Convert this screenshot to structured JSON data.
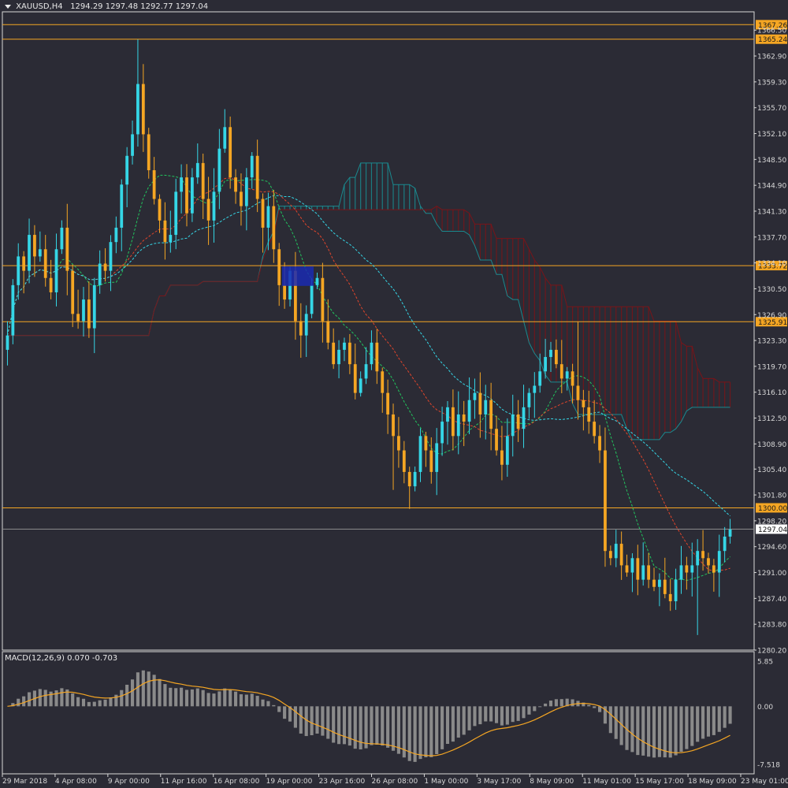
{
  "window": {
    "symbol": "XAUUSD,H4",
    "ohlc": "1294.29 1297.48 1292.77 1297.04"
  },
  "colors": {
    "background": "#2b2b35",
    "grid_frame": "#d8d8d8",
    "bull_candle": "#35d6e6",
    "bear_candle": "#f5a623",
    "level_line": "#f5a623",
    "current_price_line": "#8a8a8a",
    "kumo_bear": "#7a1418",
    "kumo_bull": "#1a8a8f",
    "ma_fast": "#22c55e",
    "ma_mid": "#e0452b",
    "ma_slow": "#35d6e6",
    "macd_hist": "#8a8a8a",
    "macd_signal": "#f5a623",
    "highlight_box": "#1a2ab0"
  },
  "macd": {
    "label": "MACD(12,26,9) 0.070 -0.703",
    "ticks": [
      "5.85",
      "0.00",
      "-7.518"
    ]
  },
  "chart_data": {
    "type": "candlestick",
    "timeframe": "H4",
    "ylim": [
      1280.2,
      1368.5
    ],
    "y_ticks": [
      "1366.50",
      "1362.90",
      "1359.30",
      "1355.70",
      "1352.10",
      "1348.50",
      "1344.90",
      "1341.30",
      "1337.70",
      "1334.10",
      "1330.50",
      "1326.90",
      "1323.30",
      "1319.70",
      "1316.10",
      "1312.50",
      "1308.90",
      "1305.40",
      "1301.80",
      "1298.20",
      "1294.60",
      "1291.00",
      "1287.40",
      "1283.80",
      "1280.20"
    ],
    "x_ticks": [
      "29 Mar 2018",
      "4 Apr 08:00",
      "9 Apr 00:00",
      "11 Apr 16:00",
      "16 Apr 08:00",
      "19 Apr 00:00",
      "23 Apr 16:00",
      "26 Apr 08:00",
      "1 May 00:00",
      "3 May 17:00",
      "8 May 09:00",
      "11 May 01:00",
      "15 May 17:00",
      "18 May 09:00",
      "23 May 01:00"
    ],
    "horizontal_levels": [
      {
        "value": 1367.26,
        "label": "1367.26"
      },
      {
        "value": 1365.24,
        "label": "1365.24"
      },
      {
        "value": 1333.72,
        "label": "1333.72"
      },
      {
        "value": 1325.91,
        "label": "1325.91"
      },
      {
        "value": 1300.0,
        "label": "1300.00"
      }
    ],
    "current_price": {
      "value": 1297.04,
      "label": "1297.04"
    },
    "close_path": [
      1324,
      1331,
      1335,
      1333,
      1338,
      1335,
      1336,
      1332,
      1330,
      1336,
      1339,
      1333,
      1327,
      1326,
      1329,
      1325,
      1331,
      1334,
      1333,
      1337,
      1339,
      1345,
      1349,
      1352,
      1359,
      1352,
      1347,
      1343,
      1340,
      1337,
      1338,
      1344,
      1346,
      1341,
      1346,
      1348,
      1343,
      1340,
      1344,
      1350,
      1353,
      1346,
      1344,
      1342,
      1346,
      1349,
      1343,
      1339,
      1342,
      1336,
      1331,
      1329,
      1333,
      1326,
      1324,
      1327,
      1331,
      1332,
      1326,
      1323,
      1320,
      1322,
      1323,
      1320,
      1316,
      1318,
      1320,
      1323,
      1319,
      1316,
      1313,
      1310,
      1308,
      1305,
      1303,
      1305,
      1310,
      1308,
      1305,
      1309,
      1312,
      1314,
      1310,
      1313,
      1312,
      1315,
      1316,
      1313,
      1315,
      1311,
      1308,
      1306,
      1310,
      1313,
      1311,
      1314,
      1316,
      1317,
      1319,
      1321,
      1322,
      1320,
      1318,
      1319,
      1317,
      1315,
      1314,
      1312,
      1310,
      1308,
      1294,
      1293,
      1295,
      1292,
      1291,
      1293,
      1290,
      1292,
      1290,
      1289,
      1290,
      1288,
      1287,
      1290,
      1292,
      1291,
      1292,
      1294,
      1293,
      1292,
      1291,
      1294,
      1296,
      1297
    ],
    "macd_ylim": [
      -7.518,
      5.85
    ]
  }
}
